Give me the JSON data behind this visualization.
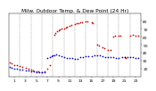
{
  "title": "Milw. Outdoor Temp. & Dew Point (24 Hr)",
  "bg_color": "#ffffff",
  "grid_color": "#888888",
  "temp_color": "#cc0000",
  "dew_color": "#0000cc",
  "ylim": [
    10,
    90
  ],
  "xlim": [
    0,
    24
  ],
  "yticks": [
    20,
    30,
    40,
    50,
    60,
    70,
    80
  ],
  "xtick_positions": [
    1,
    3,
    5,
    7,
    9,
    11,
    13,
    15,
    17,
    19,
    21,
    23
  ],
  "xtick_labels": [
    "1",
    "3",
    "5",
    "7",
    "9",
    "11",
    "13",
    "15",
    "17",
    "19",
    "21",
    "23"
  ],
  "vgrid_positions": [
    2,
    4,
    6,
    8,
    10,
    12,
    14,
    16,
    18,
    20,
    22
  ],
  "marker_size": 1.5,
  "title_fontsize": 4.2,
  "tick_fontsize": 3.2,
  "temp_data": [
    [
      0.2,
      28
    ],
    [
      0.5,
      27
    ],
    [
      1.0,
      25
    ],
    [
      1.5,
      24
    ],
    [
      2.0,
      23
    ],
    [
      2.5,
      22
    ],
    [
      3.0,
      21
    ],
    [
      3.5,
      20
    ],
    [
      4.0,
      19
    ],
    [
      4.3,
      18
    ],
    [
      5.0,
      17
    ],
    [
      5.3,
      17
    ],
    [
      6.0,
      16
    ],
    [
      6.5,
      17
    ],
    [
      7.0,
      20
    ],
    [
      7.5,
      24
    ],
    [
      8.2,
      63
    ],
    [
      8.5,
      65
    ],
    [
      8.8,
      67
    ],
    [
      9.0,
      68
    ],
    [
      9.3,
      69
    ],
    [
      9.6,
      70
    ],
    [
      10.0,
      71
    ],
    [
      10.3,
      72
    ],
    [
      10.6,
      73
    ],
    [
      11.0,
      74
    ],
    [
      11.3,
      75
    ],
    [
      12.0,
      76
    ],
    [
      12.3,
      77
    ],
    [
      12.6,
      77
    ],
    [
      13.0,
      78
    ],
    [
      13.3,
      78
    ],
    [
      14.0,
      79
    ],
    [
      14.3,
      79
    ],
    [
      15.0,
      78
    ],
    [
      15.3,
      77
    ],
    [
      16.0,
      50
    ],
    [
      16.3,
      49
    ],
    [
      17.0,
      47
    ],
    [
      17.3,
      46
    ],
    [
      18.0,
      44
    ],
    [
      18.5,
      43
    ],
    [
      19.0,
      60
    ],
    [
      19.3,
      61
    ],
    [
      20.0,
      62
    ],
    [
      20.3,
      62
    ],
    [
      21.0,
      35
    ],
    [
      21.3,
      34
    ],
    [
      22.0,
      62
    ],
    [
      22.5,
      63
    ],
    [
      23.0,
      62
    ],
    [
      23.5,
      62
    ]
  ],
  "dew_data": [
    [
      0.2,
      22
    ],
    [
      0.5,
      21
    ],
    [
      1.0,
      20
    ],
    [
      1.5,
      20
    ],
    [
      2.0,
      19
    ],
    [
      2.5,
      19
    ],
    [
      3.0,
      18
    ],
    [
      3.5,
      18
    ],
    [
      4.0,
      17
    ],
    [
      4.5,
      17
    ],
    [
      5.0,
      16
    ],
    [
      5.5,
      16
    ],
    [
      6.0,
      16
    ],
    [
      6.5,
      16
    ],
    [
      7.0,
      34
    ],
    [
      7.5,
      35
    ],
    [
      7.8,
      36
    ],
    [
      8.0,
      37
    ],
    [
      8.3,
      37
    ],
    [
      8.6,
      38
    ],
    [
      9.0,
      37
    ],
    [
      9.5,
      36
    ],
    [
      10.0,
      35
    ],
    [
      10.5,
      34
    ],
    [
      11.0,
      33
    ],
    [
      11.5,
      33
    ],
    [
      12.0,
      32
    ],
    [
      12.5,
      32
    ],
    [
      13.0,
      35
    ],
    [
      13.5,
      35
    ],
    [
      14.0,
      36
    ],
    [
      14.5,
      36
    ],
    [
      15.0,
      36
    ],
    [
      15.5,
      37
    ],
    [
      16.0,
      37
    ],
    [
      16.5,
      37
    ],
    [
      17.0,
      36
    ],
    [
      17.5,
      35
    ],
    [
      18.0,
      35
    ],
    [
      18.5,
      35
    ],
    [
      19.0,
      35
    ],
    [
      19.5,
      34
    ],
    [
      20.0,
      34
    ],
    [
      20.5,
      35
    ],
    [
      21.0,
      35
    ],
    [
      21.5,
      35
    ],
    [
      22.0,
      35
    ],
    [
      22.5,
      35
    ],
    [
      23.0,
      34
    ],
    [
      23.5,
      33
    ]
  ]
}
